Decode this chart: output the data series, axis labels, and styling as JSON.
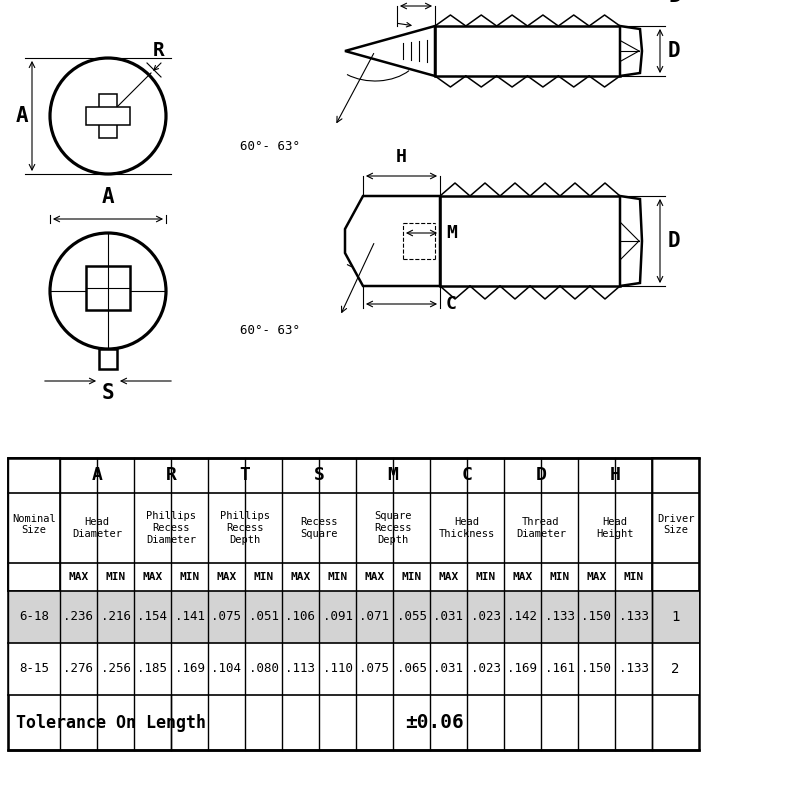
{
  "data_rows": [
    [
      "6-18",
      ".236",
      ".216",
      ".154",
      ".141",
      ".075",
      ".051",
      ".106",
      ".091",
      ".071",
      ".055",
      ".031",
      ".023",
      ".142",
      ".133",
      ".150",
      ".133",
      "1"
    ],
    [
      "8-15",
      ".276",
      ".256",
      ".185",
      ".169",
      ".104",
      ".080",
      ".113",
      ".110",
      ".075",
      ".065",
      ".031",
      ".023",
      ".169",
      ".161",
      ".150",
      ".133",
      "2"
    ]
  ],
  "tolerance_text": "Tolerance On Length",
  "tolerance_value": "±0.06",
  "bg_color_row1": "#d3d3d3",
  "bg_color_row2": "#ffffff",
  "descs": [
    "Head\nDiameter",
    "Phillips\nRecess\nDiameter",
    "Phillips\nRecess\nDepth",
    "Recess\nSquare",
    "Square\nRecess\nDepth",
    "Head\nThickness",
    "Thread\nDiameter",
    "Head\nHeight"
  ],
  "col_letters": [
    "A",
    "R",
    "T",
    "S",
    "M",
    "C",
    "D",
    "H"
  ]
}
